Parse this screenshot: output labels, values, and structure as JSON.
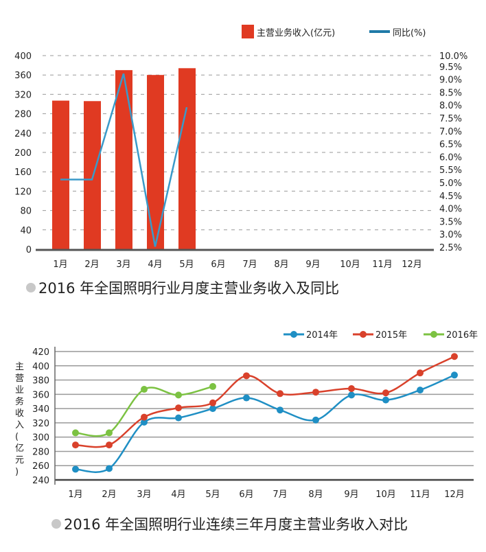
{
  "chart_data": [
    {
      "type": "bar+line",
      "title": "2016 年全国照明行业月度主营业务收入及同比",
      "categories": [
        "1月",
        "2月",
        "3月",
        "4月",
        "5月",
        "6月",
        "7月",
        "8月",
        "9月",
        "10月",
        "11月",
        "12月"
      ],
      "series": [
        {
          "name": "主营业务收入(亿元)",
          "type": "bar",
          "axis": "left",
          "color": "#e03a22",
          "values": [
            307,
            306,
            370,
            360,
            374,
            null,
            null,
            null,
            null,
            null,
            null,
            null
          ]
        },
        {
          "name": "同比(%)",
          "type": "line",
          "axis": "right",
          "color": "#3a9ac9",
          "values": [
            5.2,
            5.2,
            9.3,
            2.6,
            8.0,
            null,
            null,
            null,
            null,
            null,
            null,
            null
          ]
        }
      ],
      "ylim_left": [
        0,
        400
      ],
      "yticks_left": [
        "0",
        "40",
        "80",
        "120",
        "160",
        "200",
        "240",
        "280",
        "320",
        "360",
        "400"
      ],
      "ylim_right": [
        2.5,
        10.0
      ],
      "yticks_right": [
        "2.5%",
        "3.0%",
        "3.5%",
        "4.0%",
        "4.5%",
        "5.0%",
        "5.5%",
        "6.0%",
        "6.5%",
        "7.0%",
        "7.5%",
        "8.0%",
        "8.5%",
        "9.0%",
        "9.5%",
        "10.0%"
      ],
      "grid": "dashed horizontal",
      "legend": "top-right"
    },
    {
      "type": "line",
      "title": "2016 年全国照明行业连续三年月度主营业务收入对比",
      "ylabel": "主营业务收入(亿元)",
      "categories": [
        "1月",
        "2月",
        "3月",
        "4月",
        "5月",
        "6月",
        "7月",
        "8月",
        "9月",
        "10月",
        "11月",
        "12月"
      ],
      "series": [
        {
          "name": "2014年",
          "color": "#1f8fc4",
          "values": [
            255,
            256,
            321,
            327,
            340,
            355,
            338,
            324,
            359,
            352,
            366,
            387
          ]
        },
        {
          "name": "2015年",
          "color": "#d9412b",
          "values": [
            289,
            289,
            328,
            341,
            348,
            386,
            361,
            363,
            368,
            362,
            390,
            413
          ]
        },
        {
          "name": "2016年",
          "color": "#7cc242",
          "values": [
            306,
            306,
            367,
            359,
            371,
            null,
            null,
            null,
            null,
            null,
            null,
            null
          ]
        }
      ],
      "ylim": [
        240,
        420
      ],
      "yticks": [
        "240",
        "260",
        "280",
        "300",
        "320",
        "340",
        "360",
        "380",
        "400",
        "420"
      ],
      "grid": "solid horizontal",
      "legend": "top-right",
      "smooth": true
    }
  ]
}
